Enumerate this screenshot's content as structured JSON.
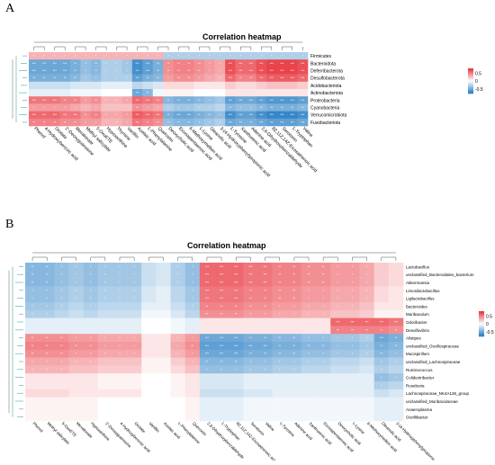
{
  "figure": {
    "panel_labels": [
      "A",
      "B"
    ]
  },
  "colors": {
    "high": "#e8373f",
    "mid": "#ffffff",
    "low": "#2a7fc4",
    "dendrogram": "#4aa8a8"
  },
  "chart_data": [
    {
      "type": "heatmap",
      "panel": "A",
      "title": "Correlation heatmap",
      "legend": {
        "ticks": [
          "0.5",
          "0",
          "-0.5"
        ],
        "placement": "right",
        "values": [
          0.5,
          0,
          -0.5
        ]
      },
      "rows": [
        "Firmicutes",
        "Bacteroidota",
        "Deferribacterota",
        "Desulfobacterota",
        "Acidobacteriota",
        "Actinobacteriota",
        "Proteobacteria",
        "Cyanobacteria",
        "Verrucomicrobiota",
        "Fusobacteriota"
      ],
      "columns": [
        "Phenol",
        "4-Hydroxybenzoic acid",
        "Orotate",
        "2'-Deoxyguanosine",
        "Mevalonate",
        "Methyl salicylate",
        "5-OxoETE",
        "Hypoxanthine",
        "Thymine",
        "Vanillin",
        "Azelaic acid",
        "L-Phenylalanine",
        "Quercetin",
        "Deoxycholic acid",
        "Eicosapentaenoic acid",
        "6-Methoxymellein acid",
        "L-Lysine",
        "Oleanolic acid",
        "3-(4-Hydroxyphenyl)propionic acid",
        "L-Tyrosine",
        "Xanthurenic acid",
        "Adenine acid",
        "2,6-Dihydroxybenzaldehyde",
        "8Z,11Z,14Z-Eicosatrienoic acid",
        "Serotonin",
        "L-Tryptophan",
        "Valine"
      ],
      "values": [
        [
          0.3,
          0.3,
          0.3,
          0.3,
          0.3,
          0.3,
          0.3,
          0.3,
          0.3,
          0.3,
          0.3,
          0.3,
          0.3,
          -0.3,
          -0.3,
          -0.3,
          -0.3,
          -0.3,
          -0.3,
          -0.3,
          -0.3,
          -0.3,
          -0.3,
          -0.3,
          -0.3,
          -0.3,
          -0.3
        ],
        [
          -0.55,
          -0.55,
          -0.55,
          -0.55,
          -0.5,
          -0.4,
          -0.45,
          -0.3,
          -0.3,
          -0.35,
          -0.7,
          -0.6,
          -0.5,
          0.45,
          0.5,
          0.5,
          0.45,
          0.4,
          0.35,
          0.7,
          0.6,
          0.6,
          0.7,
          0.75,
          0.75,
          0.75,
          0.7
        ],
        [
          -0.55,
          -0.55,
          -0.55,
          -0.55,
          -0.5,
          -0.4,
          -0.45,
          -0.3,
          -0.3,
          -0.35,
          -0.7,
          -0.6,
          -0.5,
          0.45,
          0.5,
          0.5,
          0.45,
          0.4,
          0.35,
          0.7,
          0.6,
          0.6,
          0.7,
          0.75,
          0.75,
          0.75,
          0.7
        ],
        [
          -0.5,
          -0.5,
          -0.5,
          -0.5,
          -0.45,
          -0.35,
          -0.4,
          -0.3,
          -0.3,
          -0.3,
          -0.6,
          -0.5,
          -0.45,
          0.4,
          0.45,
          0.45,
          0.4,
          0.35,
          0.3,
          0.6,
          0.5,
          0.5,
          0.6,
          0.65,
          0.65,
          0.65,
          0.6
        ],
        [
          -0.2,
          -0.2,
          -0.2,
          -0.2,
          -0.15,
          -0.15,
          -0.15,
          -0.1,
          -0.1,
          -0.1,
          -0.25,
          -0.2,
          -0.15,
          0.15,
          0.15,
          0.15,
          0.1,
          0.1,
          0.1,
          0.2,
          0.15,
          0.15,
          0.2,
          0.25,
          0.25,
          0.25,
          0.2
        ],
        [
          -0.1,
          -0.1,
          -0.1,
          -0.1,
          -0.05,
          -0.05,
          -0.05,
          0.0,
          0.0,
          0.0,
          -0.55,
          -0.45,
          -0.05,
          0.05,
          0.05,
          0.05,
          0.0,
          0.0,
          0.0,
          0.1,
          0.1,
          0.1,
          0.1,
          0.1,
          0.1,
          0.1,
          0.1
        ],
        [
          0.55,
          0.55,
          0.55,
          0.5,
          0.5,
          0.4,
          0.45,
          0.3,
          0.3,
          0.35,
          0.6,
          0.55,
          0.5,
          -0.45,
          -0.5,
          -0.5,
          -0.45,
          -0.4,
          -0.35,
          -0.6,
          -0.55,
          -0.55,
          -0.6,
          -0.65,
          -0.65,
          -0.65,
          -0.6
        ],
        [
          0.4,
          0.4,
          0.4,
          0.4,
          0.35,
          0.3,
          0.35,
          0.25,
          0.25,
          0.25,
          0.45,
          0.4,
          0.35,
          -0.3,
          -0.35,
          -0.35,
          -0.3,
          -0.3,
          -0.25,
          -0.45,
          -0.4,
          -0.4,
          -0.45,
          -0.5,
          -0.5,
          -0.5,
          -0.45
        ],
        [
          0.6,
          0.6,
          0.6,
          0.55,
          0.55,
          0.45,
          0.5,
          0.35,
          0.35,
          0.4,
          0.65,
          0.6,
          0.55,
          -0.5,
          -0.55,
          -0.55,
          -0.5,
          -0.45,
          -0.4,
          -0.7,
          -0.6,
          -0.6,
          -0.7,
          -0.75,
          -0.75,
          -0.75,
          -0.7
        ],
        [
          0.5,
          0.5,
          0.5,
          0.45,
          0.45,
          0.4,
          0.4,
          0.3,
          0.3,
          0.35,
          0.55,
          0.5,
          0.45,
          -0.4,
          -0.45,
          -0.45,
          -0.4,
          -0.35,
          -0.3,
          -0.55,
          -0.5,
          -0.5,
          -0.55,
          -0.6,
          -0.6,
          -0.6,
          -0.55
        ]
      ]
    },
    {
      "type": "heatmap",
      "panel": "B",
      "title": "Correlation heatmap",
      "legend": {
        "ticks": [
          "0.5",
          "0",
          "-0.5"
        ],
        "placement": "right",
        "values": [
          0.5,
          0,
          -0.5
        ]
      },
      "rows": [
        "Lactobacillus",
        "unclassified_Bacteroidales_bacterium",
        "Akkermansia",
        "Limosilactobacillus",
        "Ligilactobacillus",
        "Bacteroides",
        "Muribaculum",
        "Odoribacter",
        "Desulfovibrio",
        "Alistipes",
        "unclassified_Oscillospiraceae",
        "Mucispirillum",
        "unclassified_Lachnospiraceae",
        "Ruminococcus",
        "Colidextribacter",
        "Roseburia",
        "Lachnospiraceae_NK4A136_group",
        "unclassified_Muribaculaceae",
        "Anaeroplasma",
        "Oscillibacter"
      ],
      "columns": [
        "Phenol",
        "Methyl salicylate",
        "5-OxoETE",
        "Mevalonate",
        "Hypoxanthine",
        "2'-Deoxyguanosine",
        "4-Hydroxybenzoic acid",
        "Orotate",
        "Vanillin",
        "Azelaic acid",
        "L-Phenylalanine",
        "Quercetin",
        "2,6-Dihydroxybenzaldehyde",
        "L-Tryptophan",
        "8Z,11Z,14Z-Eicosatrienoic acid",
        "Serotonin",
        "Valine",
        "L-Tyrosine",
        "Adenine acid",
        "Xanthurenic acid",
        "Eicosapentaenoic acid",
        "Deoxycholic acid",
        "L-Lysine",
        "6-Methoxymellein acid",
        "Oleanolic acid",
        "3-(4-Hydroxyphenyl)propionic acid"
      ],
      "values": [
        [
          -0.45,
          -0.45,
          -0.4,
          -0.35,
          -0.4,
          -0.35,
          -0.35,
          -0.35,
          -0.2,
          -0.15,
          -0.3,
          -0.4,
          0.6,
          0.6,
          0.6,
          0.55,
          0.55,
          0.5,
          0.5,
          0.45,
          0.45,
          0.4,
          0.4,
          0.35,
          0.2,
          0.15
        ],
        [
          -0.45,
          -0.45,
          -0.4,
          -0.35,
          -0.4,
          -0.35,
          -0.35,
          -0.35,
          -0.2,
          -0.15,
          -0.3,
          -0.4,
          0.6,
          0.6,
          0.6,
          0.55,
          0.55,
          0.5,
          0.5,
          0.45,
          0.45,
          0.4,
          0.4,
          0.35,
          0.2,
          0.15
        ],
        [
          -0.45,
          -0.45,
          -0.4,
          -0.35,
          -0.4,
          -0.35,
          -0.35,
          -0.35,
          -0.2,
          -0.15,
          -0.3,
          -0.4,
          0.6,
          0.6,
          0.6,
          0.55,
          0.55,
          0.5,
          0.5,
          0.45,
          0.45,
          0.4,
          0.4,
          0.35,
          0.2,
          0.15
        ],
        [
          -0.4,
          -0.4,
          -0.35,
          -0.3,
          -0.35,
          -0.3,
          -0.3,
          -0.3,
          -0.15,
          -0.1,
          -0.25,
          -0.35,
          0.55,
          0.55,
          0.55,
          0.5,
          0.5,
          0.45,
          0.45,
          0.4,
          0.4,
          0.35,
          0.35,
          0.3,
          0.15,
          0.1
        ],
        [
          -0.4,
          -0.4,
          -0.35,
          -0.3,
          -0.35,
          -0.3,
          -0.3,
          -0.3,
          -0.15,
          -0.1,
          -0.25,
          -0.35,
          0.55,
          0.55,
          0.55,
          0.5,
          0.5,
          0.45,
          0.45,
          0.4,
          0.4,
          0.35,
          0.35,
          0.3,
          0.15,
          0.1
        ],
        [
          -0.35,
          -0.35,
          -0.3,
          -0.25,
          -0.3,
          -0.25,
          -0.25,
          -0.25,
          -0.1,
          -0.1,
          -0.2,
          -0.3,
          0.5,
          0.5,
          0.5,
          0.45,
          0.45,
          0.4,
          0.4,
          0.35,
          0.35,
          0.3,
          0.3,
          0.25,
          0.1,
          0.1
        ],
        [
          -0.3,
          -0.3,
          -0.25,
          -0.2,
          -0.25,
          -0.2,
          -0.2,
          -0.2,
          -0.05,
          -0.05,
          -0.15,
          -0.25,
          0.45,
          0.45,
          0.45,
          0.4,
          0.4,
          0.35,
          0.35,
          0.3,
          0.3,
          0.25,
          0.25,
          0.2,
          0.05,
          0.05
        ],
        [
          -0.1,
          -0.1,
          -0.1,
          -0.1,
          -0.1,
          -0.1,
          -0.1,
          -0.1,
          0.0,
          0.0,
          -0.05,
          -0.1,
          0.1,
          0.1,
          0.1,
          0.1,
          0.1,
          0.1,
          0.1,
          0.1,
          0.1,
          0.6,
          0.6,
          0.6,
          0.6,
          0.55
        ],
        [
          -0.1,
          -0.1,
          -0.1,
          -0.1,
          -0.1,
          -0.1,
          -0.1,
          -0.1,
          0.0,
          0.0,
          -0.05,
          -0.1,
          0.1,
          0.1,
          0.1,
          0.1,
          0.1,
          0.1,
          0.1,
          0.1,
          0.1,
          0.5,
          0.5,
          0.5,
          0.5,
          0.45
        ],
        [
          0.45,
          0.45,
          0.45,
          0.4,
          0.4,
          0.35,
          0.35,
          0.35,
          0.1,
          0.1,
          0.3,
          0.4,
          -0.55,
          -0.55,
          -0.55,
          -0.5,
          -0.5,
          -0.45,
          -0.45,
          -0.4,
          -0.4,
          -0.35,
          -0.35,
          -0.3,
          -0.55,
          -0.5
        ],
        [
          0.5,
          0.5,
          0.5,
          0.45,
          0.45,
          0.4,
          0.4,
          0.4,
          0.1,
          0.1,
          0.35,
          0.45,
          -0.6,
          -0.6,
          -0.6,
          -0.55,
          -0.55,
          -0.5,
          -0.5,
          -0.45,
          -0.45,
          -0.4,
          -0.4,
          -0.35,
          -0.5,
          -0.45
        ],
        [
          0.45,
          0.45,
          0.45,
          0.4,
          0.4,
          0.35,
          0.35,
          0.35,
          0.1,
          0.1,
          0.3,
          0.4,
          -0.55,
          -0.55,
          -0.55,
          -0.5,
          -0.5,
          -0.45,
          -0.45,
          -0.4,
          -0.4,
          -0.35,
          -0.35,
          -0.3,
          -0.45,
          -0.4
        ],
        [
          0.35,
          0.35,
          0.35,
          0.3,
          0.3,
          0.25,
          0.25,
          0.25,
          0.05,
          0.05,
          0.2,
          0.3,
          -0.45,
          -0.45,
          -0.45,
          -0.4,
          -0.4,
          -0.35,
          -0.35,
          -0.3,
          -0.3,
          -0.25,
          -0.25,
          -0.2,
          -0.35,
          -0.3
        ],
        [
          0.3,
          0.3,
          0.3,
          0.25,
          0.25,
          0.2,
          0.2,
          0.2,
          0.05,
          0.05,
          0.15,
          0.25,
          -0.4,
          -0.4,
          -0.4,
          -0.35,
          -0.35,
          -0.3,
          -0.3,
          -0.25,
          -0.25,
          -0.2,
          -0.2,
          -0.15,
          -0.3,
          -0.25
        ],
        [
          0.1,
          0.1,
          0.1,
          0.1,
          0.1,
          0.05,
          0.05,
          0.05,
          0.0,
          0.0,
          0.05,
          0.1,
          -0.15,
          -0.15,
          -0.15,
          -0.1,
          -0.1,
          -0.1,
          -0.1,
          -0.1,
          -0.1,
          -0.1,
          -0.1,
          -0.1,
          -0.4,
          -0.35
        ],
        [
          0.1,
          0.1,
          0.1,
          0.1,
          0.1,
          0.05,
          0.05,
          0.05,
          0.0,
          0.0,
          0.05,
          0.1,
          -0.15,
          -0.15,
          -0.15,
          -0.1,
          -0.1,
          -0.1,
          -0.1,
          -0.1,
          -0.1,
          -0.1,
          -0.1,
          -0.1,
          -0.3,
          -0.25
        ],
        [
          0.15,
          0.15,
          0.15,
          0.1,
          0.1,
          0.1,
          0.1,
          0.1,
          0.0,
          0.0,
          0.05,
          0.1,
          -0.2,
          -0.2,
          -0.2,
          -0.15,
          -0.15,
          -0.1,
          -0.1,
          -0.1,
          -0.1,
          -0.1,
          -0.1,
          -0.1,
          -0.2,
          -0.15
        ],
        [
          0.05,
          0.05,
          0.05,
          0.05,
          0.05,
          0.0,
          0.0,
          0.0,
          0.0,
          0.0,
          0.0,
          0.05,
          -0.1,
          -0.1,
          -0.1,
          -0.05,
          -0.05,
          -0.05,
          -0.05,
          -0.05,
          -0.05,
          -0.05,
          -0.05,
          -0.05,
          -0.1,
          -0.1
        ],
        [
          0.05,
          0.05,
          0.05,
          0.05,
          0.05,
          0.0,
          0.0,
          0.0,
          0.0,
          0.0,
          0.0,
          0.05,
          -0.1,
          -0.1,
          -0.1,
          -0.05,
          -0.05,
          -0.05,
          -0.05,
          -0.05,
          -0.05,
          -0.05,
          -0.05,
          -0.05,
          -0.1,
          -0.1
        ],
        [
          0.05,
          0.05,
          0.05,
          0.05,
          0.05,
          0.0,
          0.0,
          0.0,
          0.0,
          0.0,
          0.0,
          0.05,
          -0.1,
          -0.1,
          -0.1,
          -0.05,
          -0.05,
          -0.05,
          -0.05,
          -0.05,
          -0.05,
          -0.05,
          -0.05,
          -0.05,
          -0.1,
          -0.1
        ]
      ]
    }
  ]
}
